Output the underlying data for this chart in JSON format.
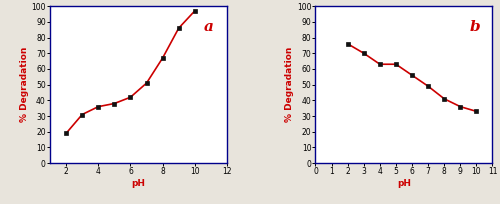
{
  "plot_a": {
    "x": [
      2,
      3,
      4,
      5,
      6,
      7,
      8,
      9,
      10
    ],
    "y": [
      19,
      31,
      36,
      38,
      42,
      51,
      67,
      86,
      97
    ],
    "xlabel": "pH",
    "ylabel": "% Degradation",
    "xlim": [
      1,
      12
    ],
    "ylim": [
      0,
      100
    ],
    "xticks": [
      2,
      4,
      6,
      8,
      10,
      12
    ],
    "yticks": [
      0,
      10,
      20,
      30,
      40,
      50,
      60,
      70,
      80,
      90,
      100
    ],
    "label": "a"
  },
  "plot_b": {
    "x": [
      2,
      3,
      4,
      5,
      6,
      7,
      8,
      9,
      10
    ],
    "y": [
      76,
      70,
      63,
      63,
      56,
      49,
      41,
      36,
      33
    ],
    "xlabel": "pH",
    "ylabel": "% Degradation",
    "xlim": [
      0,
      11
    ],
    "ylim": [
      0,
      100
    ],
    "xticks": [
      0,
      1,
      2,
      3,
      4,
      5,
      6,
      7,
      8,
      9,
      10,
      11
    ],
    "yticks": [
      0,
      10,
      20,
      30,
      40,
      50,
      60,
      70,
      80,
      90,
      100
    ],
    "label": "b"
  },
  "line_color": "#cc0000",
  "marker_color": "#111111",
  "marker": "s",
  "marker_size": 3,
  "line_width": 1.2,
  "axis_color": "#00008B",
  "label_color": "#cc0000",
  "background_color": "#e8e4dc",
  "panel_bg": "#ffffff"
}
